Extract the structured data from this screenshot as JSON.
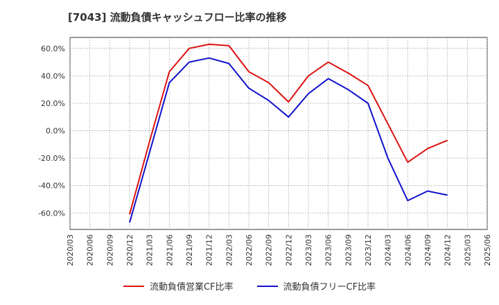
{
  "chart_data": {
    "type": "line",
    "title": "[7043]  流動負債キャッシュフロー比率の推移",
    "x_ticks": [
      "2020/03",
      "2020/06",
      "2020/09",
      "2020/12",
      "2021/03",
      "2021/06",
      "2021/09",
      "2021/12",
      "2022/03",
      "2022/06",
      "2022/09",
      "2022/12",
      "2023/03",
      "2023/06",
      "2023/09",
      "2023/12",
      "2024/03",
      "2024/06",
      "2024/09",
      "2024/12",
      "2025/03",
      "2025/06"
    ],
    "y_ticks": [
      "60.0%",
      "40.0%",
      "20.0%",
      "0.0%",
      "-20.0%",
      "-40.0%",
      "-60.0%"
    ],
    "y_tick_values": [
      60,
      40,
      20,
      0,
      -20,
      -40,
      -60
    ],
    "ylim": [
      -72,
      68
    ],
    "grid": true,
    "legend_position": "bottom",
    "series": [
      {
        "name": "流動負債営業CF比率",
        "color": "#dd1111",
        "x": [
          "2020/12",
          "2021/03",
          "2021/06",
          "2021/09",
          "2021/12",
          "2022/03",
          "2022/06",
          "2022/09",
          "2022/12",
          "2023/03",
          "2023/06",
          "2023/09",
          "2023/12",
          "2024/03",
          "2024/06",
          "2024/09",
          "2024/12"
        ],
        "values": [
          -61,
          -8,
          43,
          60,
          63,
          62,
          43,
          35,
          21,
          40,
          50,
          42,
          33,
          5,
          -23,
          -13,
          -7
        ]
      },
      {
        "name": "流動負債フリーCF比率",
        "color": "#1111cc",
        "x": [
          "2020/12",
          "2021/03",
          "2021/06",
          "2021/09",
          "2021/12",
          "2022/03",
          "2022/06",
          "2022/09",
          "2022/12",
          "2023/03",
          "2023/06",
          "2023/09",
          "2023/12",
          "2024/03",
          "2024/06",
          "2024/09",
          "2024/12"
        ],
        "values": [
          -67,
          -16,
          35,
          50,
          53,
          49,
          31,
          22,
          10,
          27,
          38,
          30,
          20,
          -20,
          -51,
          -44,
          -47
        ]
      }
    ]
  }
}
